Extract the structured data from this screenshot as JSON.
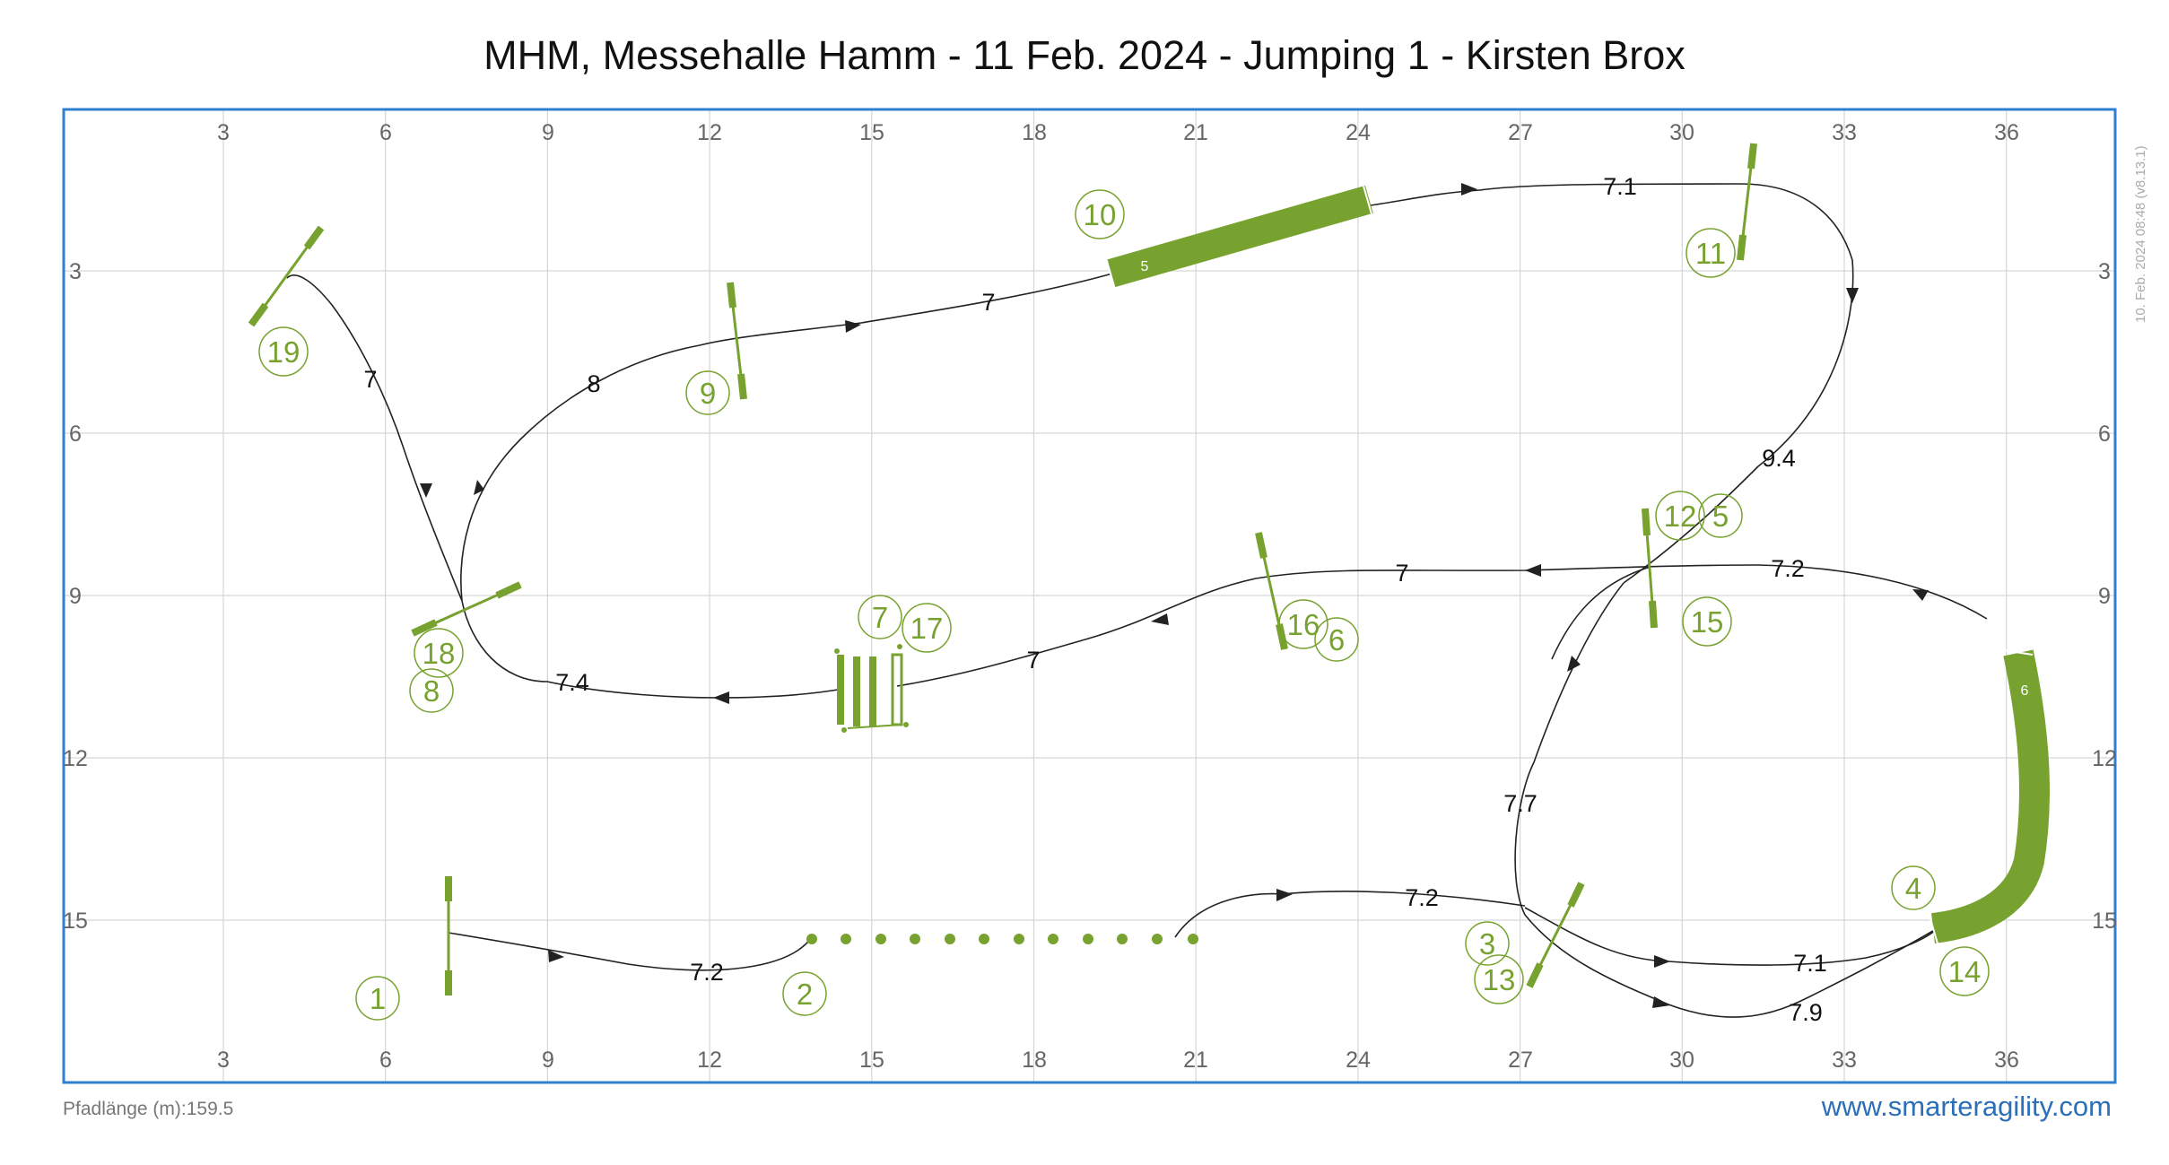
{
  "title": "MHM, Messehalle Hamm - 11 Feb. 2024 - Jumping 1 - Kirsten Brox",
  "footer": {
    "path_length": "Pfadlänge (m):159.5",
    "website": "www.smarteragility.com",
    "timestamp": "10. Feb. 2024 08:48  (v8.13.1)"
  },
  "colors": {
    "obstacle": "#78a22f",
    "frame": "#2f7fd0",
    "grid": "#d6d6d6",
    "path": "#222222"
  },
  "axes": {
    "x_ticks": [
      "3",
      "6",
      "9",
      "12",
      "15",
      "18",
      "21",
      "24",
      "27",
      "30",
      "33",
      "36"
    ],
    "y_ticks": [
      "3",
      "6",
      "9",
      "12",
      "15"
    ]
  },
  "course": {
    "obstacle_numbers": [
      "1",
      "2",
      "3",
      "13",
      "4",
      "14",
      "5",
      "12",
      "15",
      "6",
      "16",
      "7",
      "17",
      "8",
      "18",
      "9",
      "10",
      "11",
      "19"
    ],
    "tunnel_labels": [
      "5",
      "6"
    ],
    "distances": [
      "7.2",
      "7.2",
      "7.1",
      "7.9",
      "7.7",
      "9.4",
      "7.1",
      "7",
      "8",
      "7",
      "7.4",
      "7",
      "7",
      "7.2"
    ]
  }
}
